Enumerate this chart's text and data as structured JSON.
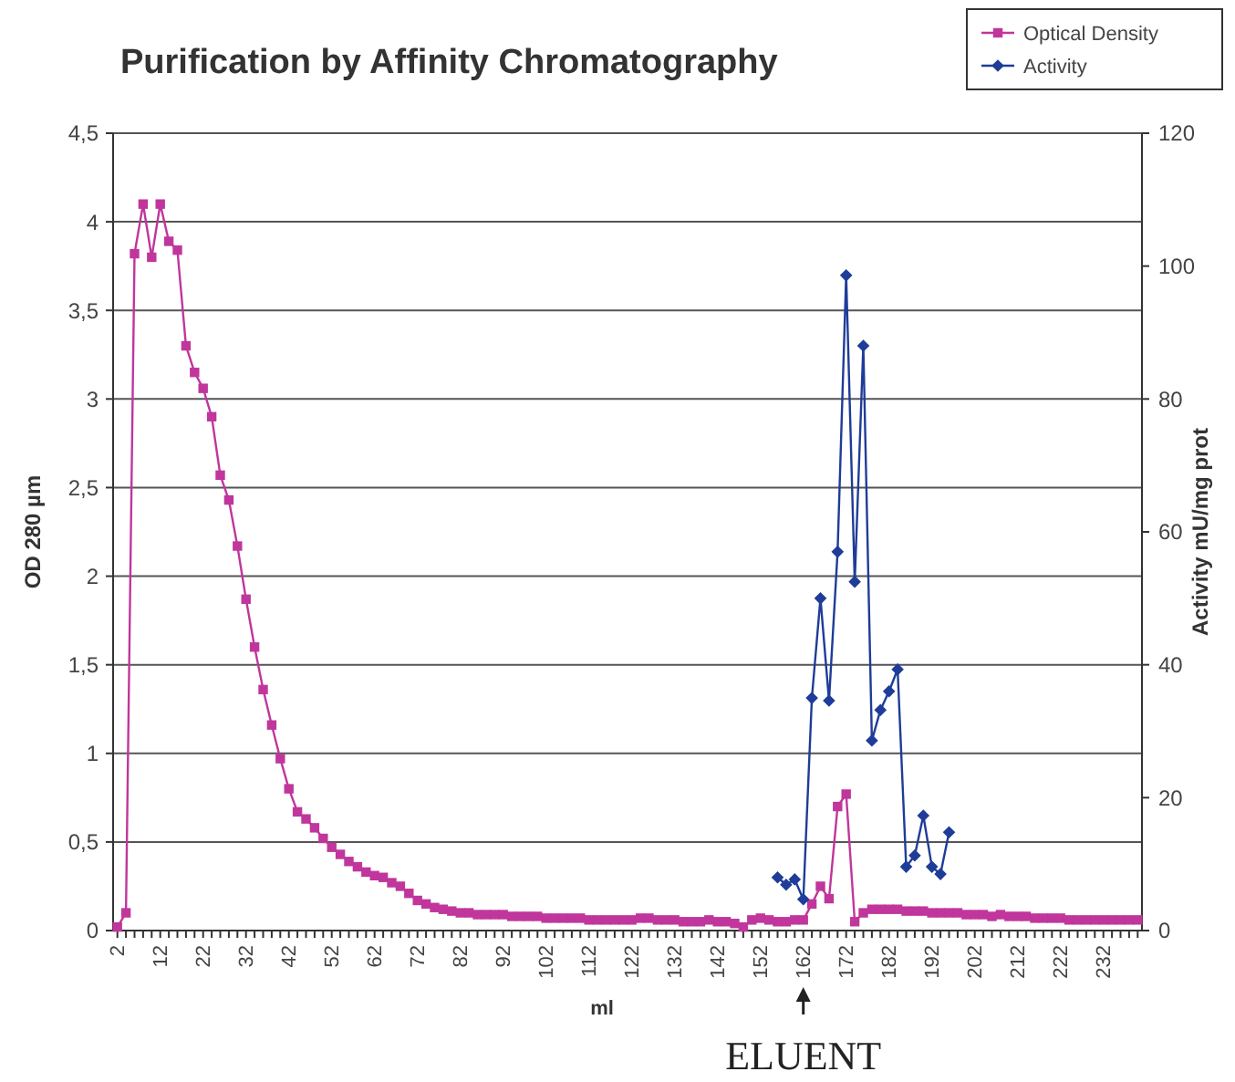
{
  "chart_data": {
    "type": "line",
    "title": "Purification by Affinity Chromatography",
    "xlabel": "ml",
    "ylabel": "OD 280 µm",
    "y2label": "Activity mU/mg prot",
    "categories": [
      "2",
      null,
      null,
      null,
      null,
      "12",
      null,
      null,
      null,
      null,
      "22",
      null,
      null,
      null,
      null,
      "32",
      null,
      null,
      null,
      null,
      "42",
      null,
      null,
      null,
      null,
      "52",
      null,
      null,
      null,
      null,
      "62",
      null,
      null,
      null,
      null,
      "72",
      null,
      null,
      null,
      null,
      "82",
      null,
      null,
      null,
      null,
      "92",
      null,
      null,
      null,
      null,
      "102",
      null,
      null,
      null,
      null,
      "112",
      null,
      null,
      null,
      null,
      "122",
      null,
      null,
      null,
      null,
      "132",
      null,
      null,
      null,
      null,
      "142",
      null,
      null,
      null,
      null,
      "152",
      null,
      null,
      null,
      null,
      "162",
      null,
      null,
      null,
      null,
      "172",
      null,
      null,
      null,
      null,
      "182",
      null,
      null,
      null,
      null,
      "192",
      null,
      null,
      null,
      null,
      "202",
      null,
      null,
      null,
      null,
      "212",
      null,
      null,
      null,
      null,
      "222",
      null,
      null,
      null,
      null,
      "232",
      null,
      null,
      null,
      null
    ],
    "series": [
      {
        "name": "Optical Density",
        "color": "#c0369c",
        "marker": "square",
        "values": [
          0.02,
          0.1,
          3.82,
          4.1,
          3.8,
          4.1,
          3.89,
          3.84,
          3.3,
          3.15,
          3.06,
          2.9,
          2.57,
          2.43,
          2.17,
          1.87,
          1.6,
          1.36,
          1.16,
          0.97,
          0.8,
          0.67,
          0.63,
          0.58,
          0.52,
          0.47,
          0.43,
          0.39,
          0.36,
          0.33,
          0.31,
          0.3,
          0.27,
          0.25,
          0.21,
          0.17,
          0.15,
          0.13,
          0.12,
          0.11,
          0.1,
          0.1,
          0.09,
          0.09,
          0.09,
          0.09,
          0.08,
          0.08,
          0.08,
          0.08,
          0.07,
          0.07,
          0.07,
          0.07,
          0.07,
          0.06,
          0.06,
          0.06,
          0.06,
          0.06,
          0.06,
          0.07,
          0.07,
          0.06,
          0.06,
          0.06,
          0.05,
          0.05,
          0.05,
          0.06,
          0.05,
          0.05,
          0.04,
          0.02,
          0.06,
          0.07,
          0.06,
          0.05,
          0.05,
          0.06,
          0.06,
          0.15,
          0.25,
          0.18,
          0.7,
          0.77,
          0.05,
          0.1,
          0.12,
          0.12,
          0.12,
          0.12,
          0.11,
          0.11,
          0.11,
          0.1,
          0.1,
          0.1,
          0.1,
          0.09,
          0.09,
          0.09,
          0.08,
          0.09,
          0.08,
          0.08,
          0.08,
          0.07,
          0.07,
          0.07,
          0.07,
          0.06,
          0.06,
          0.06,
          0.06,
          0.06,
          0.06,
          0.06,
          0.06,
          0.06
        ]
      },
      {
        "name": "Activity",
        "color": "#1f3c98",
        "marker": "diamond",
        "axis": "y2",
        "values": [
          null,
          null,
          null,
          null,
          null,
          null,
          null,
          null,
          null,
          null,
          null,
          null,
          null,
          null,
          null,
          null,
          null,
          null,
          null,
          null,
          null,
          null,
          null,
          null,
          null,
          null,
          null,
          null,
          null,
          null,
          null,
          null,
          null,
          null,
          null,
          null,
          null,
          null,
          null,
          null,
          null,
          null,
          null,
          null,
          null,
          null,
          null,
          null,
          null,
          null,
          null,
          null,
          null,
          null,
          null,
          null,
          null,
          null,
          null,
          null,
          null,
          null,
          null,
          null,
          null,
          null,
          null,
          null,
          null,
          null,
          null,
          null,
          null,
          null,
          null,
          null,
          null,
          8,
          6.9,
          7.7,
          4.7,
          35,
          50,
          34.6,
          57,
          98.6,
          52.5,
          88,
          28.6,
          33.2,
          36,
          39.3,
          9.6,
          11.3,
          17.3,
          9.6,
          8.5,
          14.8,
          null,
          null,
          null,
          null,
          null,
          null,
          null,
          null,
          null,
          null,
          null,
          null,
          null,
          null,
          null,
          null,
          null,
          null,
          null,
          null,
          null,
          null
        ]
      }
    ],
    "ylim": [
      0,
      4.5
    ],
    "yticks": [
      0,
      {
        "value": 0.5,
        "label": "0,5"
      },
      1,
      {
        "value": 1.5,
        "label": "1,5"
      },
      2,
      {
        "value": 2.5,
        "label": "2,5"
      },
      3,
      {
        "value": 3.5,
        "label": "3,5"
      },
      4,
      {
        "value": 4.5,
        "label": "4,5"
      }
    ],
    "y2lim": [
      0,
      120
    ],
    "y2ticks": [
      0,
      20,
      40,
      60,
      80,
      100,
      120
    ],
    "grid": "y",
    "legend": "top right",
    "line_style": "solid",
    "annotations": [
      {
        "text": "ELUENT",
        "x": "162"
      }
    ]
  }
}
